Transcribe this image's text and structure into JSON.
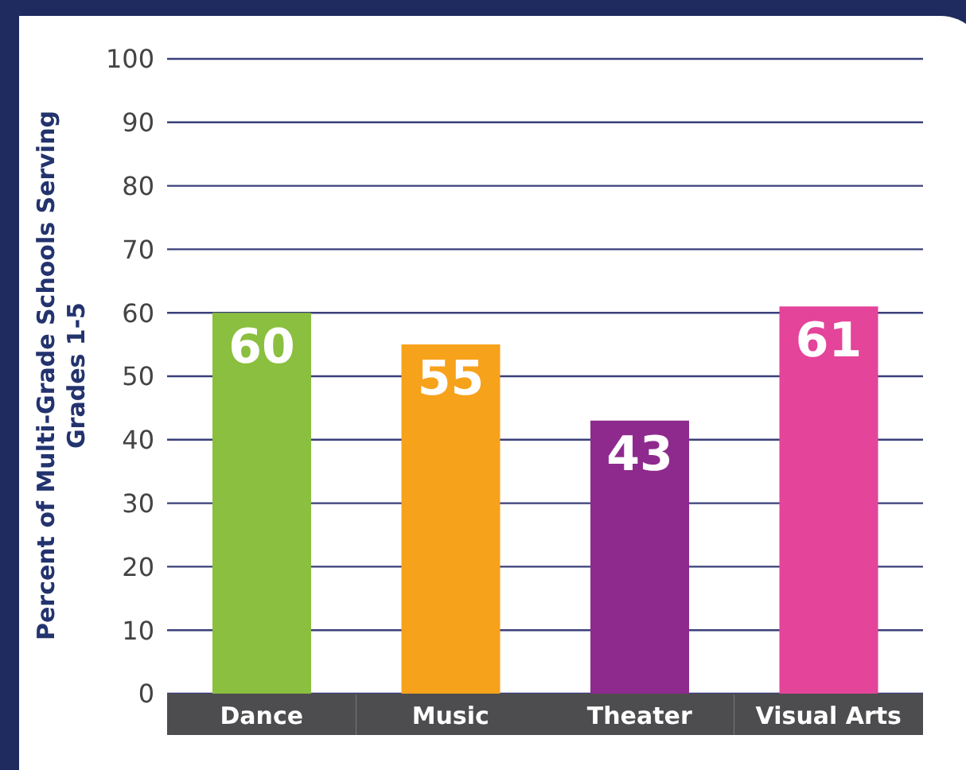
{
  "chart_data": {
    "type": "bar",
    "ylabel": "Percent of Multi-Grade Schools Serving Grades 1-5",
    "categories": [
      "Dance",
      "Music",
      "Theater",
      "Visual Arts"
    ],
    "values": [
      60,
      55,
      43,
      61
    ],
    "colors": [
      "#8bbf3f",
      "#f7a21b",
      "#8e2a8e",
      "#e4449a"
    ],
    "ylim": [
      0,
      100
    ],
    "yticks": [
      0,
      10,
      20,
      30,
      40,
      50,
      60,
      70,
      80,
      90,
      100
    ],
    "grid": "y",
    "data_labels": true
  }
}
